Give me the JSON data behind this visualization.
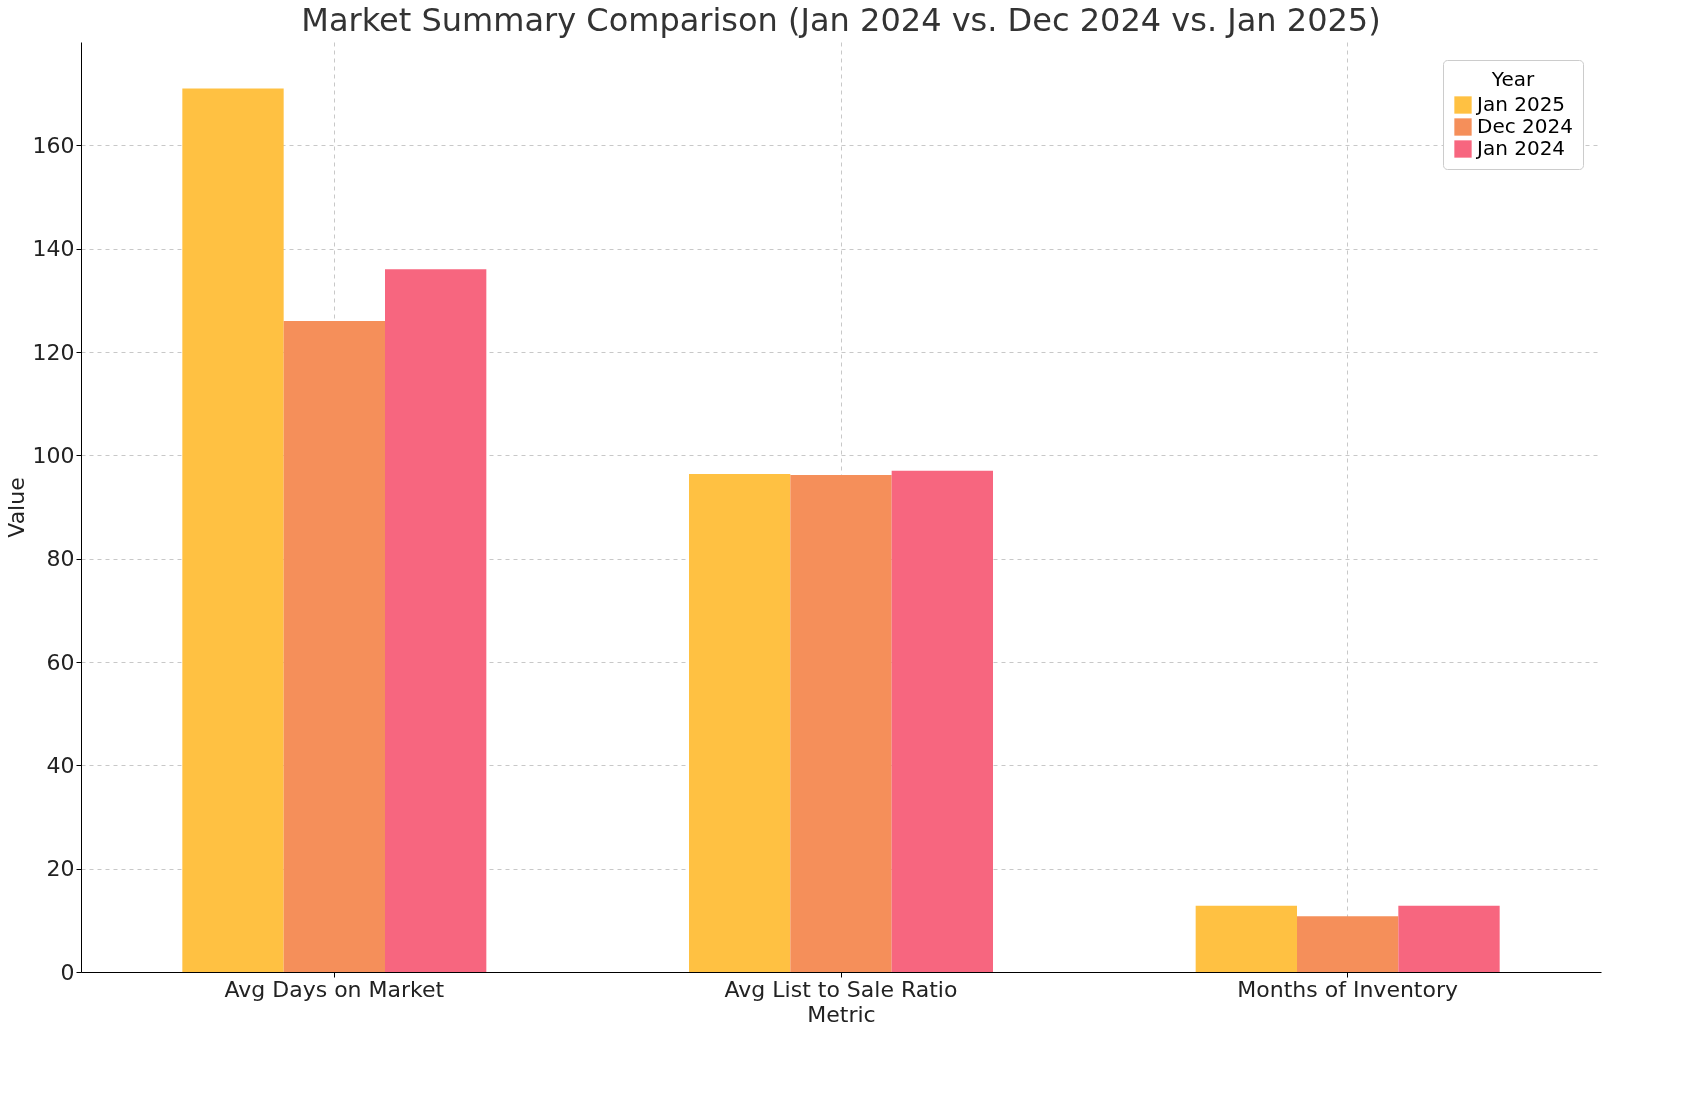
{
  "chart_data": {
    "type": "bar",
    "title": "Market Summary Comparison (Jan 2024 vs. Dec 2024 vs. Jan 2025)",
    "xlabel": "Metric",
    "ylabel": "Value",
    "legend_title": "Year",
    "categories": [
      "Avg Days on Market",
      "Avg List to Sale Ratio",
      "Months of Inventory"
    ],
    "series": [
      {
        "name": "Jan 2025",
        "color": "#ffc142",
        "values": [
          171,
          96.4,
          12.8
        ]
      },
      {
        "name": "Dec 2024",
        "color": "#f58f5a",
        "values": [
          126,
          96.2,
          10.8
        ]
      },
      {
        "name": "Jan 2024",
        "color": "#f7667f",
        "values": [
          136,
          97.0,
          12.8
        ]
      }
    ],
    "ylim": [
      0,
      180
    ],
    "yticks": [
      0,
      20,
      40,
      60,
      80,
      100,
      120,
      140,
      160
    ],
    "grid": true,
    "legend": "top right"
  }
}
